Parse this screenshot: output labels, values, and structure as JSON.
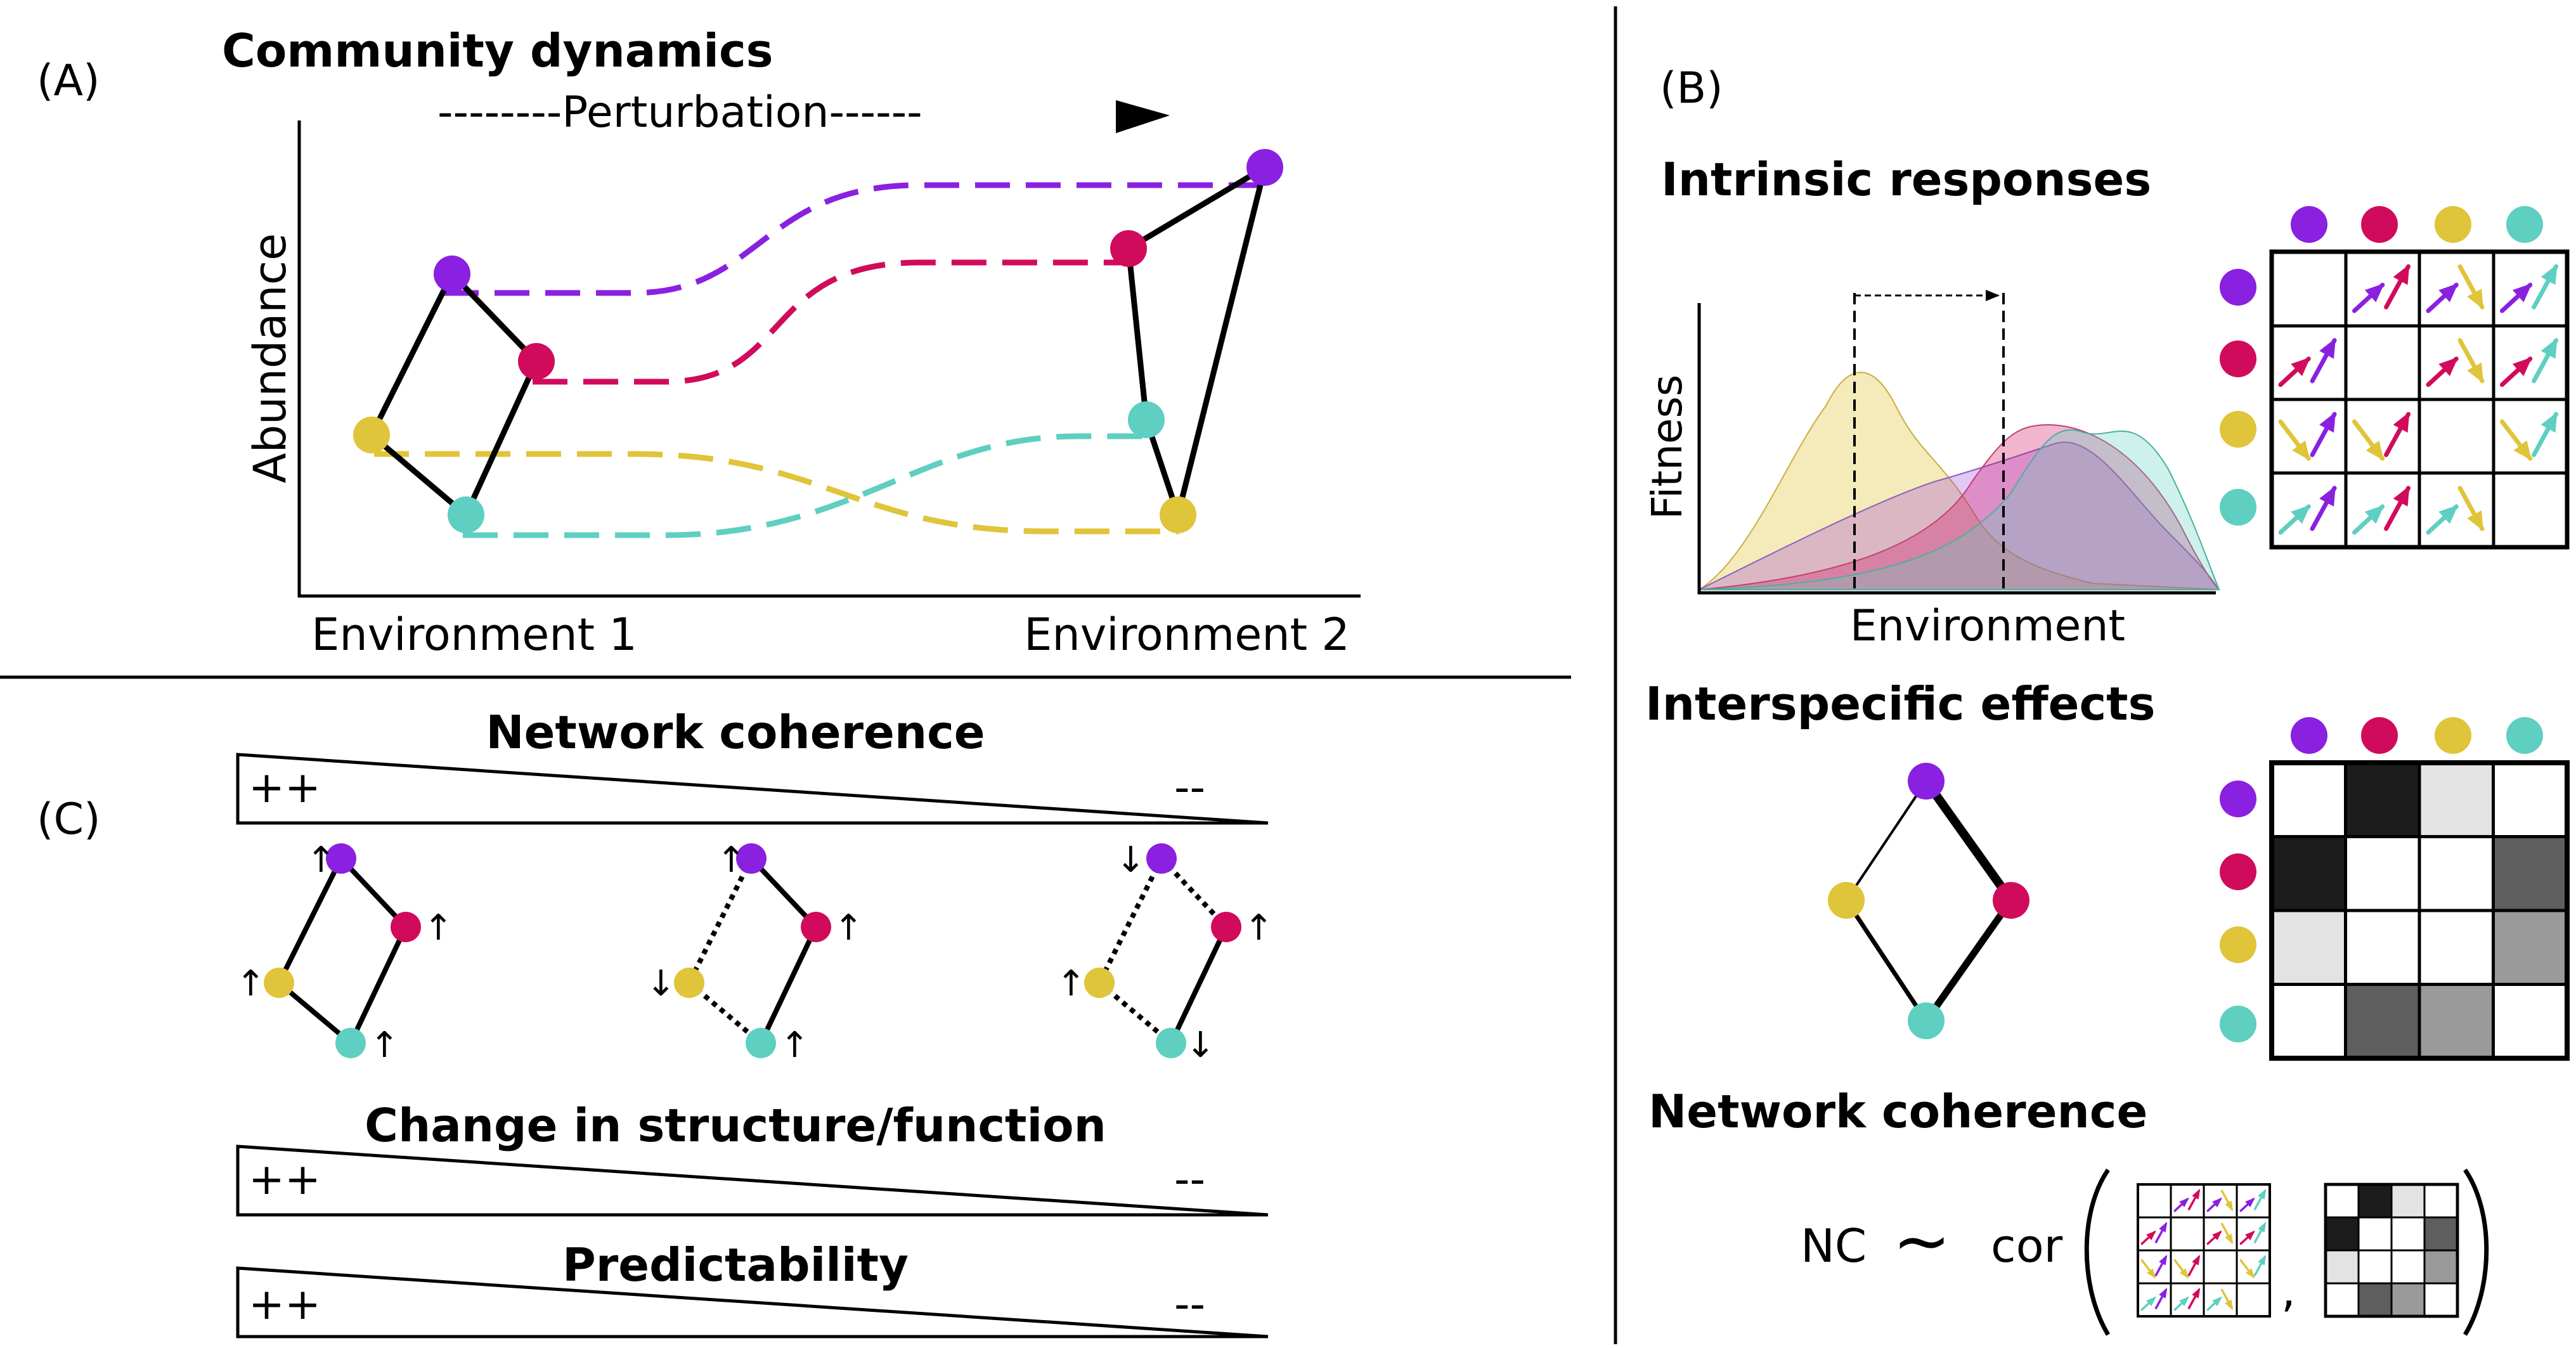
{
  "colors": {
    "purple": "#8a20e0",
    "magenta": "#d10b5c",
    "yellow": "#e0c43a",
    "teal": "#5ecfc0",
    "black": "#000000"
  },
  "panel_a": {
    "label": "(A)",
    "title": "Community dynamics",
    "arrow_label": "--------Perturbation------",
    "ylabel": "Abundance",
    "x_left": "Environment 1",
    "x_right": "Environment 2"
  },
  "panel_b": {
    "label": "(B)",
    "intrinsic_title": "Intrinsic responses",
    "fitness_ylabel": "Fitness",
    "fitness_xlabel": "Environment",
    "interspecific_title": "Interspecific effects",
    "coherence_title": "Network coherence",
    "formula_nc": "NC",
    "formula_tilde": "~",
    "formula_cor": "cor",
    "formula_comma": ",",
    "effect_matrix_shades": [
      [
        "#ffffff",
        "#1c1c1c",
        "#e3e3e3",
        "#ffffff"
      ],
      [
        "#1c1c1c",
        "#ffffff",
        "#ffffff",
        "#5e5e5e"
      ],
      [
        "#e3e3e3",
        "#ffffff",
        "#ffffff",
        "#9a9a9a"
      ],
      [
        "#ffffff",
        "#5e5e5e",
        "#9a9a9a",
        "#ffffff"
      ]
    ]
  },
  "panel_c": {
    "label": "(C)",
    "coherence_title": "Network coherence",
    "change_title": "Change in structure/function",
    "predictability_title": "Predictability",
    "high": "++",
    "low": "--",
    "arrow_up": "↑",
    "arrow_down": "↓"
  }
}
